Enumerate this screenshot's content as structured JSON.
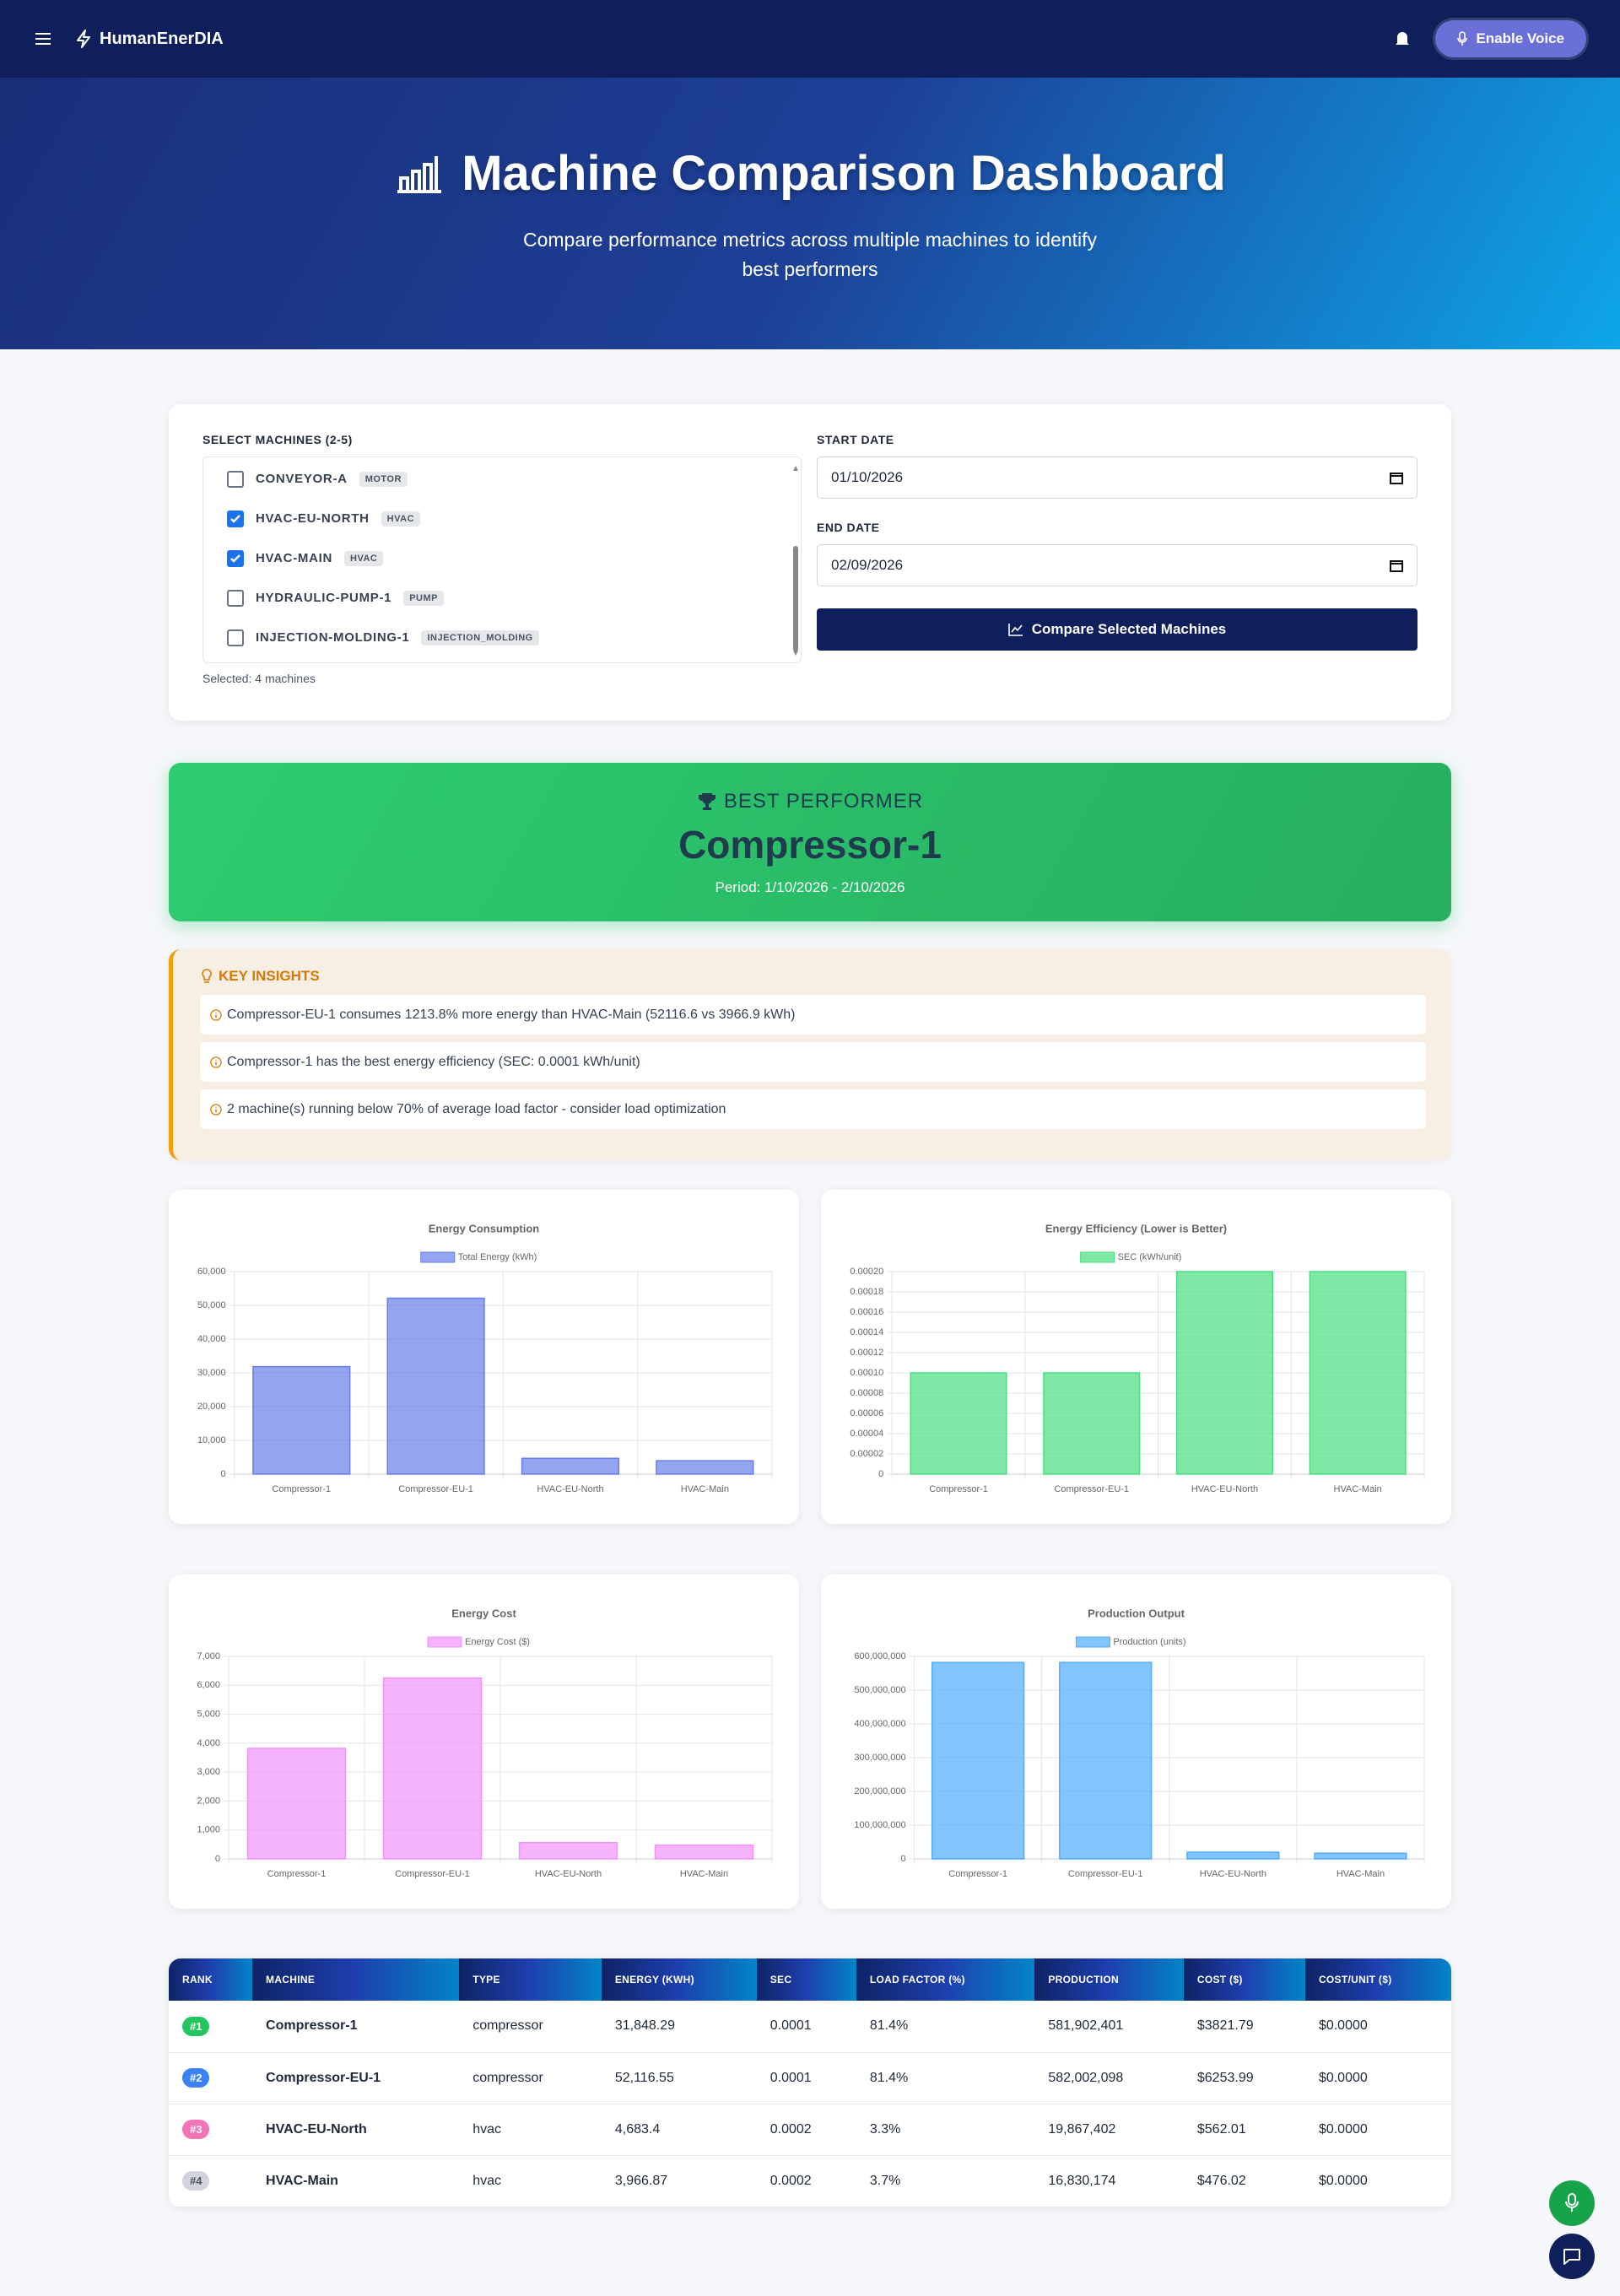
{
  "nav": {
    "brand": "HumanEnerDIA",
    "voice_button": "Enable Voice"
  },
  "header": {
    "title": "Machine Comparison Dashboard",
    "subtitle": "Compare performance metrics across multiple machines to identify best performers"
  },
  "selector": {
    "label": "SELECT MACHINES (2-5)",
    "machines": [
      {
        "name": "CONVEYOR-A",
        "type": "MOTOR",
        "checked": false
      },
      {
        "name": "HVAC-EU-NORTH",
        "type": "HVAC",
        "checked": true
      },
      {
        "name": "HVAC-MAIN",
        "type": "HVAC",
        "checked": true
      },
      {
        "name": "HYDRAULIC-PUMP-1",
        "type": "PUMP",
        "checked": false
      },
      {
        "name": "INJECTION-MOLDING-1",
        "type": "INJECTION_MOLDING",
        "checked": false
      }
    ],
    "selected": "Selected: 4 machines",
    "start_label": "START DATE",
    "start_date": "01/10/2026",
    "end_label": "END DATE",
    "end_date": "02/09/2026",
    "button": "Compare Selected Machines"
  },
  "best": {
    "label": "BEST PERFORMER",
    "name": "Compressor-1",
    "period": "Period: 1/10/2026 - 2/10/2026"
  },
  "insights": {
    "title": "KEY INSIGHTS",
    "items": [
      "Compressor-EU-1 consumes 1213.8% more energy than HVAC-Main (52116.6 vs 3966.9 kWh)",
      "Compressor-1 has the best energy efficiency (SEC: 0.0001 kWh/unit)",
      "2 machine(s) running below 70% of average load factor - consider load optimization"
    ]
  },
  "chart_data": [
    {
      "type": "bar",
      "title": "Energy Consumption",
      "categories": [
        "Compressor-1",
        "Compressor-EU-1",
        "HVAC-EU-North",
        "HVAC-Main"
      ],
      "series": [
        {
          "name": "Total Energy (kWh)",
          "color": "#667eea",
          "values": [
            31848.29,
            52116.55,
            4683.4,
            3966.87
          ]
        }
      ],
      "ylim": [
        0,
        60000
      ],
      "yticks": [
        0,
        {
          "value": 10000,
          "label": "10,000"
        },
        {
          "value": 20000,
          "label": "20,000"
        },
        {
          "value": 30000,
          "label": "30,000"
        },
        {
          "value": 40000,
          "label": "40,000"
        },
        {
          "value": 50000,
          "label": "50,000"
        },
        {
          "value": 60000,
          "label": "60,000"
        }
      ],
      "grid": true
    },
    {
      "type": "bar",
      "title": "Energy Efficiency (Lower is Better)",
      "categories": [
        "Compressor-1",
        "Compressor-EU-1",
        "HVAC-EU-North",
        "HVAC-Main"
      ],
      "series": [
        {
          "name": "SEC (kWh/unit)",
          "color": "#4ade80",
          "values": [
            0.0001,
            0.0001,
            0.0002,
            0.0002
          ]
        }
      ],
      "ylim": [
        0,
        0.0002
      ],
      "yticks": [
        0,
        2e-05,
        4e-05,
        6e-05,
        8e-05,
        {
          "value": 0.0001,
          "label": "0.00010"
        },
        0.00012,
        0.00014,
        0.00016,
        0.00018,
        {
          "value": 0.0002,
          "label": "0.00020"
        }
      ],
      "grid": true
    },
    {
      "type": "bar",
      "title": "Energy Cost",
      "categories": [
        "Compressor-1",
        "Compressor-EU-1",
        "HVAC-EU-North",
        "HVAC-Main"
      ],
      "series": [
        {
          "name": "Energy Cost ($)",
          "color": "#f093fb",
          "values": [
            3821.79,
            6253.99,
            562.01,
            476.02
          ]
        }
      ],
      "ylim": [
        0,
        7000
      ],
      "yticks": [
        0,
        {
          "value": 1000,
          "label": "1,000"
        },
        {
          "value": 2000,
          "label": "2,000"
        },
        {
          "value": 3000,
          "label": "3,000"
        },
        {
          "value": 4000,
          "label": "4,000"
        },
        {
          "value": 5000,
          "label": "5,000"
        },
        {
          "value": 6000,
          "label": "6,000"
        },
        {
          "value": 7000,
          "label": "7,000"
        }
      ],
      "grid": true
    },
    {
      "type": "bar",
      "title": "Production Output",
      "categories": [
        "Compressor-1",
        "Compressor-EU-1",
        "HVAC-EU-North",
        "HVAC-Main"
      ],
      "series": [
        {
          "name": "Production (units)",
          "color": "#4facfe",
          "values": [
            581902401,
            582002098,
            19867402,
            16830174
          ]
        }
      ],
      "ylim": [
        0,
        600000000
      ],
      "yticks": [
        0,
        {
          "value": 100000000,
          "label": "100,000,000"
        },
        {
          "value": 200000000,
          "label": "200,000,000"
        },
        {
          "value": 300000000,
          "label": "300,000,000"
        },
        {
          "value": 400000000,
          "label": "400,000,000"
        },
        {
          "value": 500000000,
          "label": "500,000,000"
        },
        {
          "value": 600000000,
          "label": "600,000,000"
        }
      ],
      "grid": true
    }
  ],
  "table": {
    "headers": [
      "RANK",
      "MACHINE",
      "TYPE",
      "ENERGY (KWH)",
      "SEC",
      "LOAD FACTOR (%)",
      "PRODUCTION",
      "COST ($)",
      "COST/UNIT ($)"
    ],
    "rows": [
      [
        "#1",
        "Compressor-1",
        "compressor",
        "31,848.29",
        "0.0001",
        "81.4%",
        "581,902,401",
        "$3821.79",
        "$0.0000"
      ],
      [
        "#2",
        "Compressor-EU-1",
        "compressor",
        "52,116.55",
        "0.0001",
        "81.4%",
        "582,002,098",
        "$6253.99",
        "$0.0000"
      ],
      [
        "#3",
        "HVAC-EU-North",
        "hvac",
        "4,683.4",
        "0.0002",
        "3.3%",
        "19,867,402",
        "$562.01",
        "$0.0000"
      ],
      [
        "#4",
        "HVAC-Main",
        "hvac",
        "3,966.87",
        "0.0002",
        "3.7%",
        "16,830,174",
        "$476.02",
        "$0.0000"
      ]
    ]
  }
}
